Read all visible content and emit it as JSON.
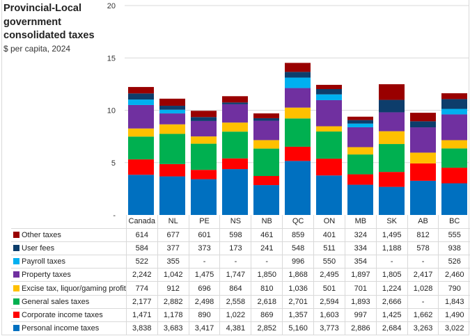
{
  "chart_data": {
    "type": "bar",
    "stacked": true,
    "title": "Provincial-Local government consolidated taxes",
    "subtitle": "$ per capita, 2024",
    "xlabel": "",
    "ylabel": "",
    "ylim": [
      0,
      20
    ],
    "y_unit_divisor": 1000,
    "yticks": [
      "-",
      "5",
      "10",
      "15",
      "20"
    ],
    "ytick_values": [
      0,
      5,
      10,
      15,
      20
    ],
    "grid": true,
    "legend": "data-table-left",
    "categories": [
      "Canada",
      "NL",
      "PE",
      "NS",
      "NB",
      "QC",
      "ON",
      "MB",
      "SK",
      "AB",
      "BC"
    ],
    "series": [
      {
        "name": "Personal income taxes",
        "color": "#0070c0",
        "values": [
          3838,
          3683,
          3417,
          4381,
          2852,
          5160,
          3773,
          2886,
          2684,
          3263,
          3022
        ]
      },
      {
        "name": "Corporate income taxes",
        "color": "#ff0000",
        "values": [
          1471,
          1178,
          890,
          1022,
          869,
          1357,
          1603,
          997,
          1425,
          1662,
          1490
        ]
      },
      {
        "name": "General sales taxes",
        "color": "#00b050",
        "values": [
          2177,
          2882,
          2498,
          2558,
          2618,
          2701,
          2594,
          1893,
          2666,
          null,
          1843
        ]
      },
      {
        "name": "Excise tax, liquor/gaming profit",
        "color": "#ffc000",
        "values": [
          774,
          912,
          696,
          864,
          810,
          1036,
          501,
          701,
          1224,
          1028,
          790
        ]
      },
      {
        "name": "Property taxes",
        "color": "#7030a0",
        "values": [
          2242,
          1042,
          1475,
          1747,
          1850,
          1868,
          2495,
          1897,
          1805,
          2417,
          2460
        ]
      },
      {
        "name": "Payroll taxes",
        "color": "#00b0f0",
        "values": [
          522,
          355,
          null,
          null,
          null,
          996,
          550,
          354,
          null,
          null,
          526
        ]
      },
      {
        "name": "User fees",
        "color": "#0d3d6b",
        "values": [
          584,
          377,
          373,
          173,
          241,
          548,
          511,
          334,
          1188,
          578,
          938
        ]
      },
      {
        "name": "Other taxes",
        "color": "#990000",
        "values": [
          614,
          677,
          601,
          598,
          461,
          859,
          401,
          324,
          1495,
          812,
          555
        ]
      }
    ],
    "table_row_order": [
      "Other taxes",
      "User fees",
      "Payroll taxes",
      "Property taxes",
      "Excise tax, liquor/gaming profit",
      "General sales taxes",
      "Corporate income taxes",
      "Personal income taxes"
    ],
    "missing_display": "-"
  }
}
